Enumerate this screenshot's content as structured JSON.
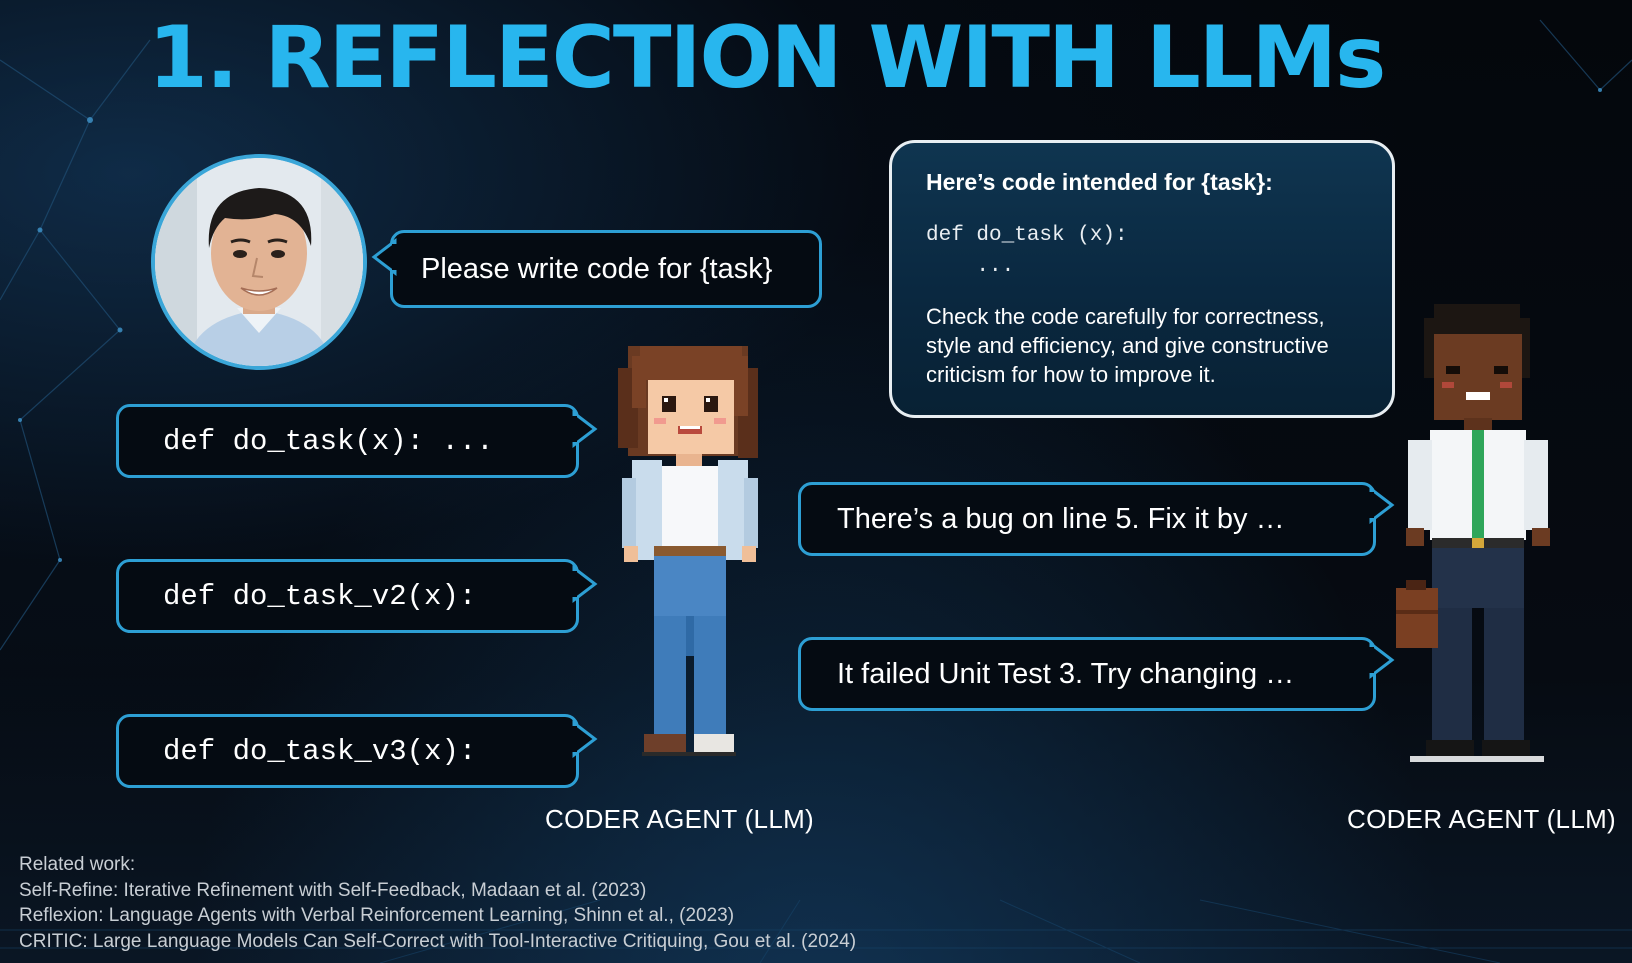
{
  "slide": {
    "title": "1. REFLECTION WITH LLMs",
    "user_prompt": "Please write code for {task}",
    "code_versions": [
      "def do_task(x): ...",
      "def do_task_v2(x):",
      "def do_task_v3(x):"
    ],
    "critique_prompt": {
      "heading": "Here’s code intended for {task}:",
      "code_lines": [
        "def do_task (x):",
        "    ..."
      ],
      "body": "Check the code carefully for correctness, style and efficiency, and give constructive criticism for how to improve it."
    },
    "feedback": [
      "There’s a bug on line 5. Fix it by …",
      "It failed Unit Test 3. Try changing …"
    ],
    "agents": {
      "left_label": "CODER AGENT (LLM)",
      "right_label": "CODER AGENT (LLM)"
    },
    "related_work": {
      "heading": "Related work:",
      "items": [
        "Self-Refine: Iterative Refinement with Self-Feedback, Madaan et al. (2023)",
        "Reflexion: Language Agents with Verbal Reinforcement Learning, Shinn et al., (2023)",
        "CRITIC: Large Language Models Can Self-Correct with Tool-Interactive Critiquing, Gou et al. (2024)"
      ]
    }
  },
  "colors": {
    "title": "#28b6ee",
    "bubble_border": "#2d9fd4",
    "critique_bg": "#0f3550",
    "background": "#05080d"
  },
  "icons": [
    "person-photo",
    "pixel-art-coder-woman",
    "pixel-art-coder-man"
  ]
}
